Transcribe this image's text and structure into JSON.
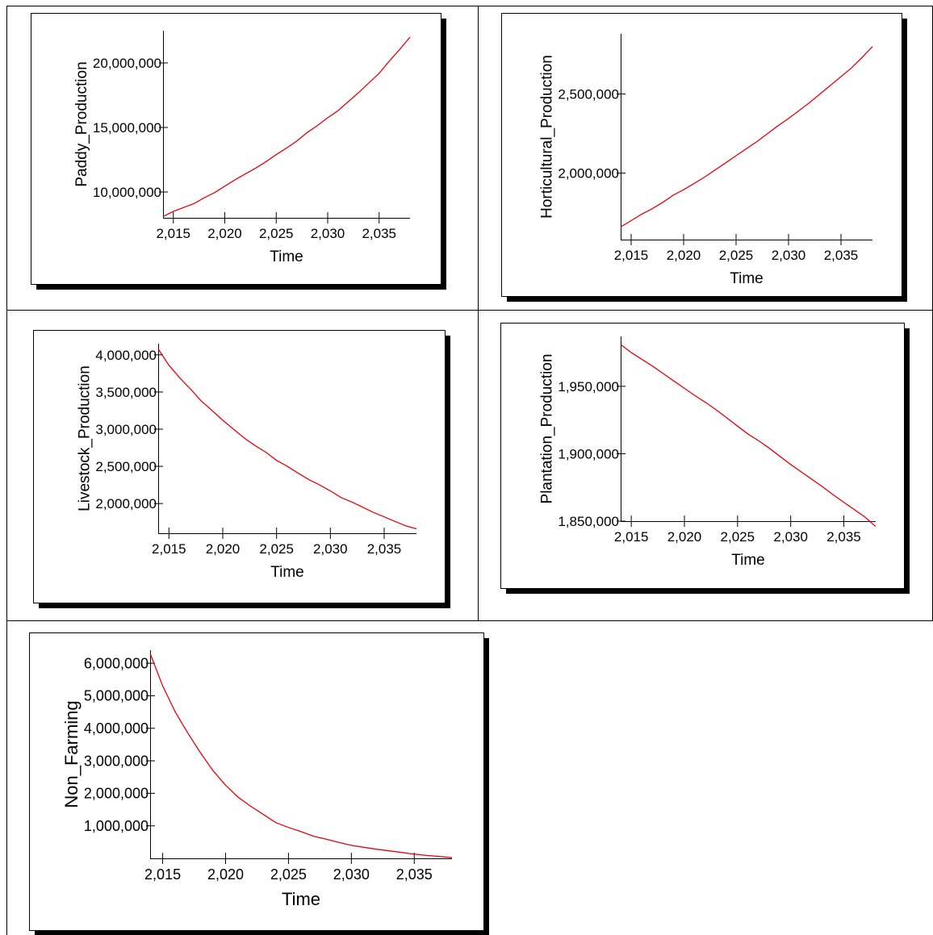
{
  "colors": {
    "series": "#e8000b",
    "frame": "#000000",
    "background": "#ffffff"
  },
  "chart_data": [
    {
      "type": "line",
      "title": "",
      "xlabel": "Time",
      "ylabel": "Paddy_Production",
      "xlim": [
        2014,
        2038
      ],
      "ylim": [
        8000000,
        22500000
      ],
      "x_ticks": [
        2015,
        2020,
        2025,
        2030,
        2035
      ],
      "x_tick_labels": [
        "2,015",
        "2,020",
        "2,025",
        "2,030",
        "2,035"
      ],
      "y_ticks": [
        10000000,
        15000000,
        20000000
      ],
      "y_tick_labels": [
        "10,000,000",
        "15,000,000",
        "20,000,000"
      ],
      "grid": false,
      "series": [
        {
          "x": [
            2014,
            2015,
            2016,
            2017,
            2018,
            2019,
            2020,
            2021,
            2022,
            2023,
            2024,
            2025,
            2026,
            2027,
            2028,
            2029,
            2030,
            2031,
            2032,
            2033,
            2034,
            2035,
            2036,
            2037,
            2038
          ],
          "values": [
            8100000,
            8500000,
            8800000,
            9100000,
            9550000,
            9950000,
            10450000,
            10950000,
            11400000,
            11850000,
            12350000,
            12900000,
            13400000,
            13950000,
            14600000,
            15150000,
            15750000,
            16300000,
            17000000,
            17700000,
            18450000,
            19200000,
            20150000,
            21050000,
            22000000
          ]
        }
      ]
    },
    {
      "type": "line",
      "title": "",
      "xlabel": "Time",
      "ylabel": "Horticultural_Production",
      "xlim": [
        2014,
        2038
      ],
      "ylim": [
        1580000,
        2880000
      ],
      "x_ticks": [
        2015,
        2020,
        2025,
        2030,
        2035
      ],
      "x_tick_labels": [
        "2,015",
        "2,020",
        "2,025",
        "2,030",
        "2,035"
      ],
      "y_ticks": [
        2000000,
        2500000
      ],
      "y_tick_labels": [
        "2,000,000",
        "2,500,000"
      ],
      "grid": false,
      "series": [
        {
          "x": [
            2014,
            2015,
            2016,
            2017,
            2018,
            2019,
            2020,
            2021,
            2022,
            2023,
            2024,
            2025,
            2026,
            2027,
            2028,
            2029,
            2030,
            2031,
            2032,
            2033,
            2034,
            2035,
            2036,
            2037,
            2038
          ],
          "values": [
            1660000,
            1700000,
            1740000,
            1775000,
            1815000,
            1860000,
            1895000,
            1935000,
            1975000,
            2020000,
            2065000,
            2110000,
            2155000,
            2200000,
            2250000,
            2300000,
            2345000,
            2395000,
            2445000,
            2500000,
            2555000,
            2610000,
            2665000,
            2730000,
            2800000
          ]
        }
      ]
    },
    {
      "type": "line",
      "title": "",
      "xlabel": "Time",
      "ylabel": "Livestock_Production",
      "xlim": [
        2014,
        2038
      ],
      "ylim": [
        1600000,
        4150000
      ],
      "x_ticks": [
        2015,
        2020,
        2025,
        2030,
        2035
      ],
      "x_tick_labels": [
        "2,015",
        "2,020",
        "2,025",
        "2,030",
        "2,035"
      ],
      "y_ticks": [
        2000000,
        2500000,
        3000000,
        3500000,
        4000000
      ],
      "y_tick_labels": [
        "2,000,000",
        "2,500,000",
        "3,000,000",
        "3,500,000",
        "4,000,000"
      ],
      "grid": false,
      "series": [
        {
          "x": [
            2014,
            2015,
            2016,
            2017,
            2018,
            2019,
            2020,
            2021,
            2022,
            2023,
            2024,
            2025,
            2026,
            2027,
            2028,
            2029,
            2030,
            2031,
            2032,
            2033,
            2034,
            2035,
            2036,
            2037,
            2038
          ],
          "values": [
            4080000,
            3860000,
            3690000,
            3540000,
            3380000,
            3250000,
            3120000,
            3000000,
            2880000,
            2780000,
            2690000,
            2580000,
            2500000,
            2410000,
            2320000,
            2250000,
            2170000,
            2080000,
            2020000,
            1950000,
            1880000,
            1820000,
            1760000,
            1700000,
            1660000
          ]
        }
      ]
    },
    {
      "type": "line",
      "title": "",
      "xlabel": "Time",
      "ylabel": "Plantation_Production",
      "xlim": [
        2014,
        2038
      ],
      "ylim": [
        1850000,
        1987000
      ],
      "x_ticks": [
        2015,
        2020,
        2025,
        2030,
        2035
      ],
      "x_tick_labels": [
        "2,015",
        "2,020",
        "2,025",
        "2,030",
        "2,035"
      ],
      "y_ticks": [
        1850000,
        1900000,
        1950000
      ],
      "y_tick_labels": [
        "1,850,000",
        "1,900,000",
        "1,950,000"
      ],
      "grid": false,
      "series": [
        {
          "x": [
            2014,
            2015,
            2016,
            2017,
            2018,
            2019,
            2020,
            2021,
            2022,
            2023,
            2024,
            2025,
            2026,
            2027,
            2028,
            2029,
            2030,
            2031,
            2032,
            2033,
            2034,
            2035,
            2036,
            2037,
            2038
          ],
          "values": [
            1981000,
            1975000,
            1970000,
            1965000,
            1959500,
            1954000,
            1948500,
            1943000,
            1938000,
            1932500,
            1926500,
            1920500,
            1914500,
            1909500,
            1904000,
            1898000,
            1892000,
            1886500,
            1881000,
            1875500,
            1869500,
            1864000,
            1858500,
            1853000,
            1846000
          ]
        }
      ]
    },
    {
      "type": "line",
      "title": "",
      "xlabel": "Time",
      "ylabel": "Non_Farming",
      "xlim": [
        2014,
        2038
      ],
      "ylim": [
        0,
        6400000
      ],
      "x_ticks": [
        2015,
        2020,
        2025,
        2030,
        2035
      ],
      "x_tick_labels": [
        "2,015",
        "2,020",
        "2,025",
        "2,030",
        "2,035"
      ],
      "y_ticks": [
        1000000,
        2000000,
        3000000,
        4000000,
        5000000,
        6000000
      ],
      "y_tick_labels": [
        "1,000,000",
        "2,000,000",
        "3,000,000",
        "4,000,000",
        "5,000,000",
        "6,000,000"
      ],
      "grid": false,
      "series": [
        {
          "x": [
            2014,
            2015,
            2016,
            2017,
            2018,
            2019,
            2020,
            2021,
            2022,
            2023,
            2024,
            2025,
            2026,
            2027,
            2028,
            2029,
            2030,
            2031,
            2032,
            2033,
            2034,
            2035,
            2036,
            2037,
            2038
          ],
          "values": [
            6300000,
            5300000,
            4500000,
            3850000,
            3250000,
            2700000,
            2250000,
            1880000,
            1600000,
            1350000,
            1100000,
            950000,
            820000,
            680000,
            590000,
            490000,
            400000,
            340000,
            280000,
            230000,
            180000,
            130000,
            90000,
            60000,
            20000
          ]
        }
      ]
    }
  ]
}
